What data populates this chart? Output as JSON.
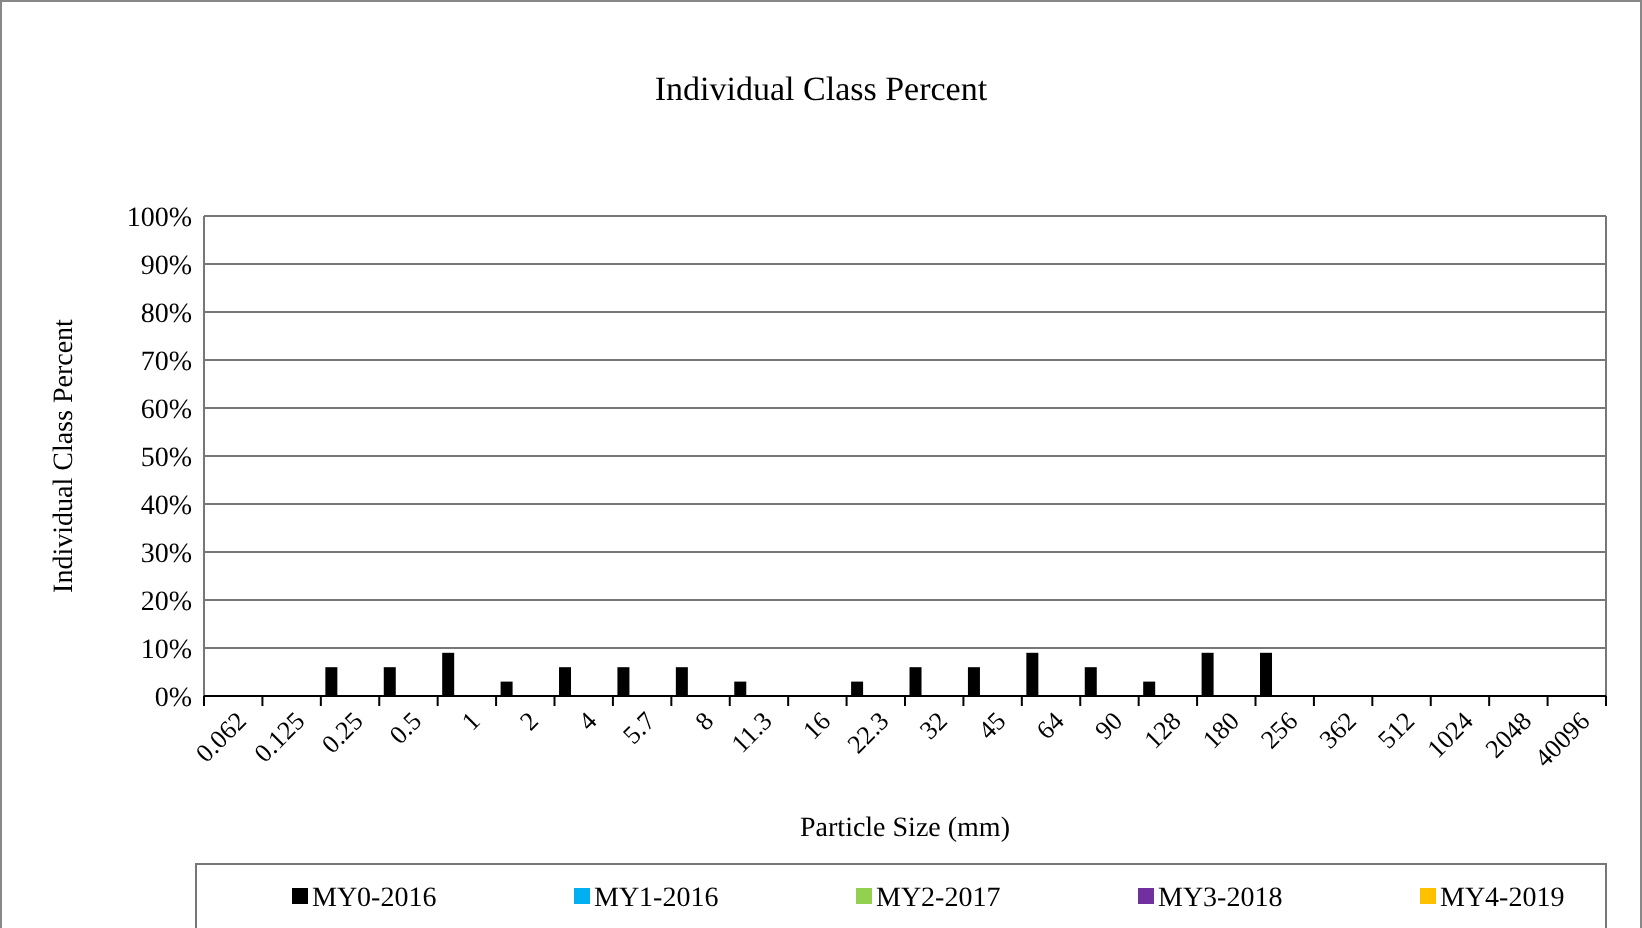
{
  "chart_data": {
    "type": "bar",
    "title": "Individual Class Percent",
    "xlabel": "Particle Size (mm)",
    "ylabel": "Individual Class Percent",
    "categories": [
      "0.062",
      "0.125",
      "0.25",
      "0.5",
      "1",
      "2",
      "4",
      "5.7",
      "8",
      "11.3",
      "16",
      "22.3",
      "32",
      "45",
      "64",
      "90",
      "128",
      "180",
      "256",
      "362",
      "512",
      "1024",
      "2048",
      "40096"
    ],
    "series": [
      {
        "name": "MY0-2016",
        "color": "#000000",
        "values": [
          0,
          0,
          6,
          6,
          9,
          3,
          6,
          6,
          6,
          3,
          0,
          3,
          6,
          6,
          9,
          6,
          3,
          9,
          9,
          0,
          0,
          0,
          0,
          0
        ]
      },
      {
        "name": "MY1-2016",
        "color": "#00b0f0",
        "values": [
          null,
          null,
          null,
          null,
          null,
          null,
          null,
          null,
          null,
          null,
          null,
          null,
          null,
          null,
          null,
          null,
          null,
          null,
          null,
          null,
          null,
          null,
          null,
          null
        ]
      },
      {
        "name": "MY2-2017",
        "color": "#92d050",
        "values": [
          null,
          null,
          null,
          null,
          null,
          null,
          null,
          null,
          null,
          null,
          null,
          null,
          null,
          null,
          null,
          null,
          null,
          null,
          null,
          null,
          null,
          null,
          null,
          null
        ]
      },
      {
        "name": "MY3-2018",
        "color": "#7030a0",
        "values": [
          null,
          null,
          null,
          null,
          null,
          null,
          null,
          null,
          null,
          null,
          null,
          null,
          null,
          null,
          null,
          null,
          null,
          null,
          null,
          null,
          null,
          null,
          null,
          null
        ]
      },
      {
        "name": "MY4-2019",
        "color": "#ffc000",
        "values": [
          null,
          null,
          null,
          null,
          null,
          null,
          null,
          null,
          null,
          null,
          null,
          null,
          null,
          null,
          null,
          null,
          null,
          null,
          null,
          null,
          null,
          null,
          null,
          null
        ]
      }
    ],
    "ylim": [
      0,
      100
    ],
    "yticks": [
      {
        "value": 0,
        "label": "0%"
      },
      {
        "value": 10,
        "label": "10%"
      },
      {
        "value": 20,
        "label": "20%"
      },
      {
        "value": 30,
        "label": "30%"
      },
      {
        "value": 40,
        "label": "40%"
      },
      {
        "value": 50,
        "label": "50%"
      },
      {
        "value": 60,
        "label": "60%"
      },
      {
        "value": 70,
        "label": "70%"
      },
      {
        "value": 80,
        "label": "80%"
      },
      {
        "value": 90,
        "label": "90%"
      },
      {
        "value": 100,
        "label": "100%"
      }
    ],
    "grid": "y",
    "legend": "bottom"
  }
}
